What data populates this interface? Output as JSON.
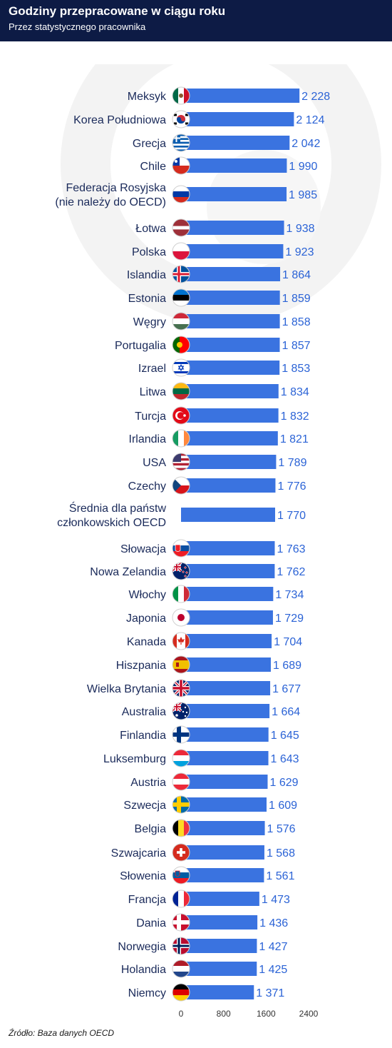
{
  "header": {
    "title": "Godziny przepracowane w ciągu roku",
    "subtitle": "Przez statystycznego pracownika"
  },
  "source": "Źródło: Baza danych OECD",
  "colors": {
    "header_bg": "#0d1b45",
    "bar": "#3a73e0",
    "label": "#1a2a5a",
    "value": "#2b63d6"
  },
  "chart_data": {
    "type": "bar",
    "orientation": "horizontal",
    "title": "Godziny przepracowane w ciągu roku",
    "subtitle": "Przez statystycznego pracownika",
    "xlim": [
      0,
      2400
    ],
    "xticks": [
      0,
      800,
      1600,
      2400
    ],
    "xtick_labels": [
      "0",
      "800",
      "1600",
      "2400"
    ],
    "grid": false,
    "categories": [
      {
        "lines": [
          "Meksyk"
        ],
        "value": 2228,
        "label": "2 228",
        "flag": "mexico-flag"
      },
      {
        "lines": [
          "Korea Południowa"
        ],
        "value": 2124,
        "label": "2 124",
        "flag": "south-korea-flag"
      },
      {
        "lines": [
          "Grecja"
        ],
        "value": 2042,
        "label": "2 042",
        "flag": "greece-flag"
      },
      {
        "lines": [
          "Chile"
        ],
        "value": 1990,
        "label": "1 990",
        "flag": "chile-flag"
      },
      {
        "lines": [
          "Federacja Rosyjska",
          "(nie należy do OECD)"
        ],
        "value": 1985,
        "label": "1 985",
        "flag": "russia-flag"
      },
      {
        "lines": [
          "Łotwa"
        ],
        "value": 1938,
        "label": "1 938",
        "flag": "latvia-flag"
      },
      {
        "lines": [
          "Polska"
        ],
        "value": 1923,
        "label": "1 923",
        "flag": "poland-flag"
      },
      {
        "lines": [
          "Islandia"
        ],
        "value": 1864,
        "label": "1 864",
        "flag": "iceland-flag"
      },
      {
        "lines": [
          "Estonia"
        ],
        "value": 1859,
        "label": "1 859",
        "flag": "estonia-flag"
      },
      {
        "lines": [
          "Węgry"
        ],
        "value": 1858,
        "label": "1 858",
        "flag": "hungary-flag"
      },
      {
        "lines": [
          "Portugalia"
        ],
        "value": 1857,
        "label": "1 857",
        "flag": "portugal-flag"
      },
      {
        "lines": [
          "Izrael"
        ],
        "value": 1853,
        "label": "1 853",
        "flag": "israel-flag"
      },
      {
        "lines": [
          "Litwa"
        ],
        "value": 1834,
        "label": "1 834",
        "flag": "lithuania-flag"
      },
      {
        "lines": [
          "Turcja"
        ],
        "value": 1832,
        "label": "1 832",
        "flag": "turkey-flag"
      },
      {
        "lines": [
          "Irlandia"
        ],
        "value": 1821,
        "label": "1 821",
        "flag": "ireland-flag"
      },
      {
        "lines": [
          "USA"
        ],
        "value": 1789,
        "label": "1 789",
        "flag": "usa-flag"
      },
      {
        "lines": [
          "Czechy"
        ],
        "value": 1776,
        "label": "1 776",
        "flag": "czechia-flag"
      },
      {
        "lines": [
          "Średnia dla państw",
          "członkowskich OECD"
        ],
        "value": 1770,
        "label": "1 770",
        "flag": ""
      },
      {
        "lines": [
          "Słowacja"
        ],
        "value": 1763,
        "label": "1 763",
        "flag": "slovakia-flag"
      },
      {
        "lines": [
          "Nowa Zelandia"
        ],
        "value": 1762,
        "label": "1 762",
        "flag": "new-zealand-flag"
      },
      {
        "lines": [
          "Włochy"
        ],
        "value": 1734,
        "label": "1 734",
        "flag": "italy-flag"
      },
      {
        "lines": [
          "Japonia"
        ],
        "value": 1729,
        "label": "1 729",
        "flag": "japan-flag"
      },
      {
        "lines": [
          "Kanada"
        ],
        "value": 1704,
        "label": "1 704",
        "flag": "canada-flag"
      },
      {
        "lines": [
          "Hiszpania"
        ],
        "value": 1689,
        "label": "1 689",
        "flag": "spain-flag"
      },
      {
        "lines": [
          "Wielka Brytania"
        ],
        "value": 1677,
        "label": "1 677",
        "flag": "uk-flag"
      },
      {
        "lines": [
          "Australia"
        ],
        "value": 1664,
        "label": "1 664",
        "flag": "australia-flag"
      },
      {
        "lines": [
          "Finlandia"
        ],
        "value": 1645,
        "label": "1 645",
        "flag": "finland-flag"
      },
      {
        "lines": [
          "Luksemburg"
        ],
        "value": 1643,
        "label": "1 643",
        "flag": "luxembourg-flag"
      },
      {
        "lines": [
          "Austria"
        ],
        "value": 1629,
        "label": "1 629",
        "flag": "austria-flag"
      },
      {
        "lines": [
          "Szwecja"
        ],
        "value": 1609,
        "label": "1 609",
        "flag": "sweden-flag"
      },
      {
        "lines": [
          "Belgia"
        ],
        "value": 1576,
        "label": "1 576",
        "flag": "belgium-flag"
      },
      {
        "lines": [
          "Szwajcaria"
        ],
        "value": 1568,
        "label": "1 568",
        "flag": "switzerland-flag"
      },
      {
        "lines": [
          "Słowenia"
        ],
        "value": 1561,
        "label": "1 561",
        "flag": "slovenia-flag"
      },
      {
        "lines": [
          "Francja"
        ],
        "value": 1473,
        "label": "1 473",
        "flag": "france-flag"
      },
      {
        "lines": [
          "Dania"
        ],
        "value": 1436,
        "label": "1 436",
        "flag": "denmark-flag"
      },
      {
        "lines": [
          "Norwegia"
        ],
        "value": 1427,
        "label": "1 427",
        "flag": "norway-flag"
      },
      {
        "lines": [
          "Holandia"
        ],
        "value": 1425,
        "label": "1 425",
        "flag": "netherlands-flag"
      },
      {
        "lines": [
          "Niemcy"
        ],
        "value": 1371,
        "label": "1 371",
        "flag": "germany-flag"
      }
    ]
  }
}
